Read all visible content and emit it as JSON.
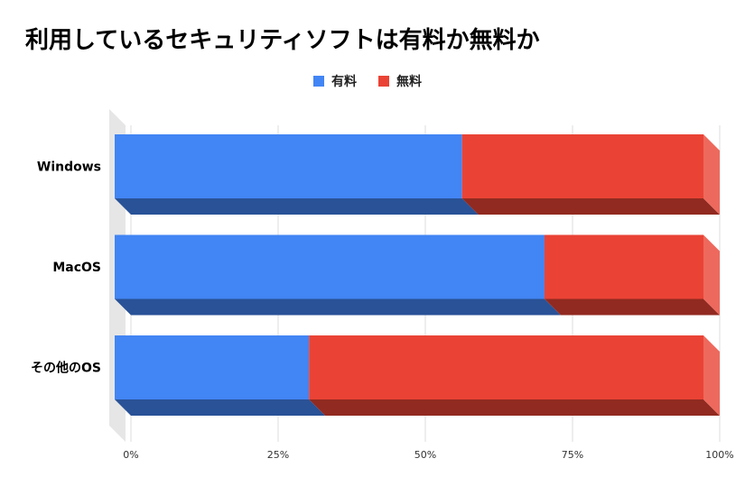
{
  "chart_data": {
    "type": "bar",
    "orientation": "horizontal",
    "stacked": "percent",
    "title": "利用しているセキュリティソフトは有料か無料か",
    "categories": [
      "Windows",
      "MacOS",
      "その他のOS"
    ],
    "series": [
      {
        "name": "有料",
        "values": [
          59,
          73,
          33
        ],
        "color": "#4285f4"
      },
      {
        "name": "無料",
        "values": [
          41,
          27,
          67
        ],
        "color": "#ea4335"
      }
    ],
    "xlim": [
      0,
      100
    ],
    "xticks": [
      "0%",
      "25%",
      "50%",
      "75%",
      "100%"
    ],
    "grid": true,
    "legend": "top",
    "style": "3d"
  }
}
